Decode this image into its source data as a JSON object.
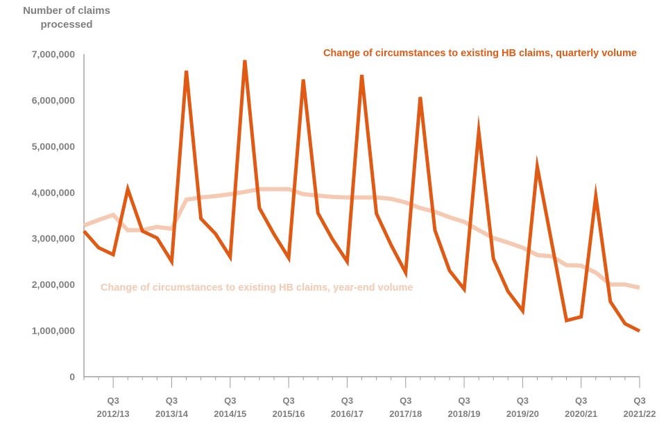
{
  "chart_data": {
    "type": "line",
    "ylabel": "Number of claims processed",
    "ylabel_lines": [
      "Number of claims",
      "processed"
    ],
    "ylim": [
      0,
      7000000
    ],
    "yticks": [
      0,
      1000000,
      2000000,
      3000000,
      4000000,
      5000000,
      6000000,
      7000000
    ],
    "ytick_labels": [
      "0",
      "1,000,000",
      "2,000,000",
      "3,000,000",
      "4,000,000",
      "5,000,000",
      "6,000,000",
      "7,000,000"
    ],
    "grid": false,
    "x_range": [
      "Q1 2012/13",
      "Q3 2021/22"
    ],
    "xtick_labels": [
      {
        "q": "Q3",
        "year": "2012/13"
      },
      {
        "q": "Q3",
        "year": "2013/14"
      },
      {
        "q": "Q3",
        "year": "2014/15"
      },
      {
        "q": "Q3",
        "year": "2015/16"
      },
      {
        "q": "Q3",
        "year": "2016/17"
      },
      {
        "q": "Q3",
        "year": "2017/18"
      },
      {
        "q": "Q3",
        "year": "2018/19"
      },
      {
        "q": "Q3",
        "year": "2019/20"
      },
      {
        "q": "Q3",
        "year": "2020/21"
      },
      {
        "q": "Q3",
        "year": "2021/22"
      }
    ],
    "series": [
      {
        "name": "Change of circumstances to existing HB claims, quarterly volume",
        "color": "#df5a14",
        "values": [
          3160000,
          2800000,
          2650000,
          4070000,
          3160000,
          3010000,
          2500000,
          6640000,
          3430000,
          3100000,
          2600000,
          6870000,
          3660000,
          3090000,
          2580000,
          6450000,
          3550000,
          2980000,
          2500000,
          6550000,
          3540000,
          2860000,
          2260000,
          6070000,
          3180000,
          2300000,
          1900000,
          5320000,
          2560000,
          1850000,
          1430000,
          4560000,
          2890000,
          1220000,
          1300000,
          3920000,
          1630000,
          1150000,
          990000
        ]
      },
      {
        "name": "Change of circumstances to existing HB claims, year-end volume",
        "color": "#f5c9b2",
        "values": [
          3280000,
          3400000,
          3510000,
          3180000,
          3180000,
          3250000,
          3210000,
          3840000,
          3890000,
          3920000,
          3960000,
          4010000,
          4070000,
          4070000,
          4070000,
          3960000,
          3930000,
          3900000,
          3890000,
          3890000,
          3890000,
          3860000,
          3780000,
          3660000,
          3580000,
          3460000,
          3360000,
          3180000,
          3010000,
          2910000,
          2800000,
          2640000,
          2610000,
          2420000,
          2410000,
          2260000,
          2000000,
          2000000,
          1930000
        ]
      }
    ]
  }
}
